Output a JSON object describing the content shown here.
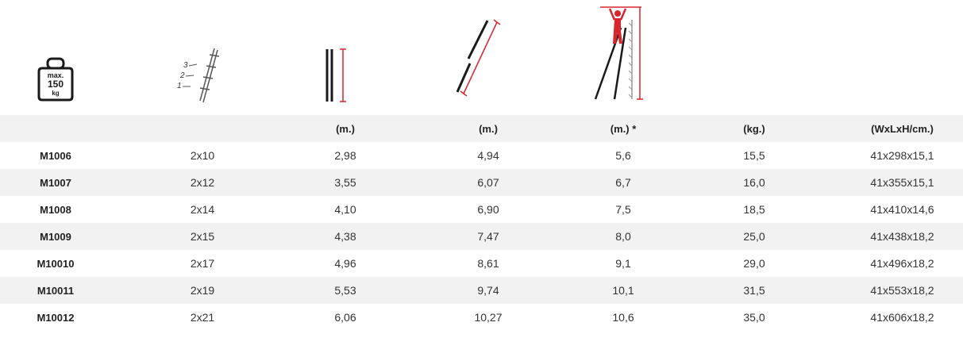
{
  "weight_icon": {
    "line1": "max.",
    "line2": "150",
    "line3": "kg"
  },
  "steps_icon": {
    "n3": "3",
    "n2": "2",
    "n1": "1"
  },
  "headers": [
    "",
    "",
    "(m.)",
    "(m.)",
    "(m.) *",
    "(kg.)",
    "(WxLxH/cm.)"
  ],
  "rows": [
    [
      "M1006",
      "2x10",
      "2,98",
      "4,94",
      "5,6",
      "15,5",
      "41x298x15,1"
    ],
    [
      "M1007",
      "2x12",
      "3,55",
      "6,07",
      "6,7",
      "16,0",
      "41x355x15,1"
    ],
    [
      "M1008",
      "2x14",
      "4,10",
      "6,90",
      "7,5",
      "18,5",
      "41x410x14,6"
    ],
    [
      "M1009",
      "2x15",
      "4,38",
      "7,47",
      "8,0",
      "25,0",
      "41x438x18,2"
    ],
    [
      "M10010",
      "2x17",
      "4,96",
      "8,61",
      "9,1",
      "29,0",
      "41x496x18,2"
    ],
    [
      "M10011",
      "2x19",
      "5,53",
      "9,74",
      "10,1",
      "31,5",
      "41x553x18,2"
    ],
    [
      "M10012",
      "2x21",
      "6,06",
      "10,27",
      "10,6",
      "35,0",
      "41x606x18,2"
    ]
  ],
  "colors": {
    "accent": "#d7262c",
    "row_alt": "#f2f2f2",
    "text": "#2b2b2b"
  }
}
